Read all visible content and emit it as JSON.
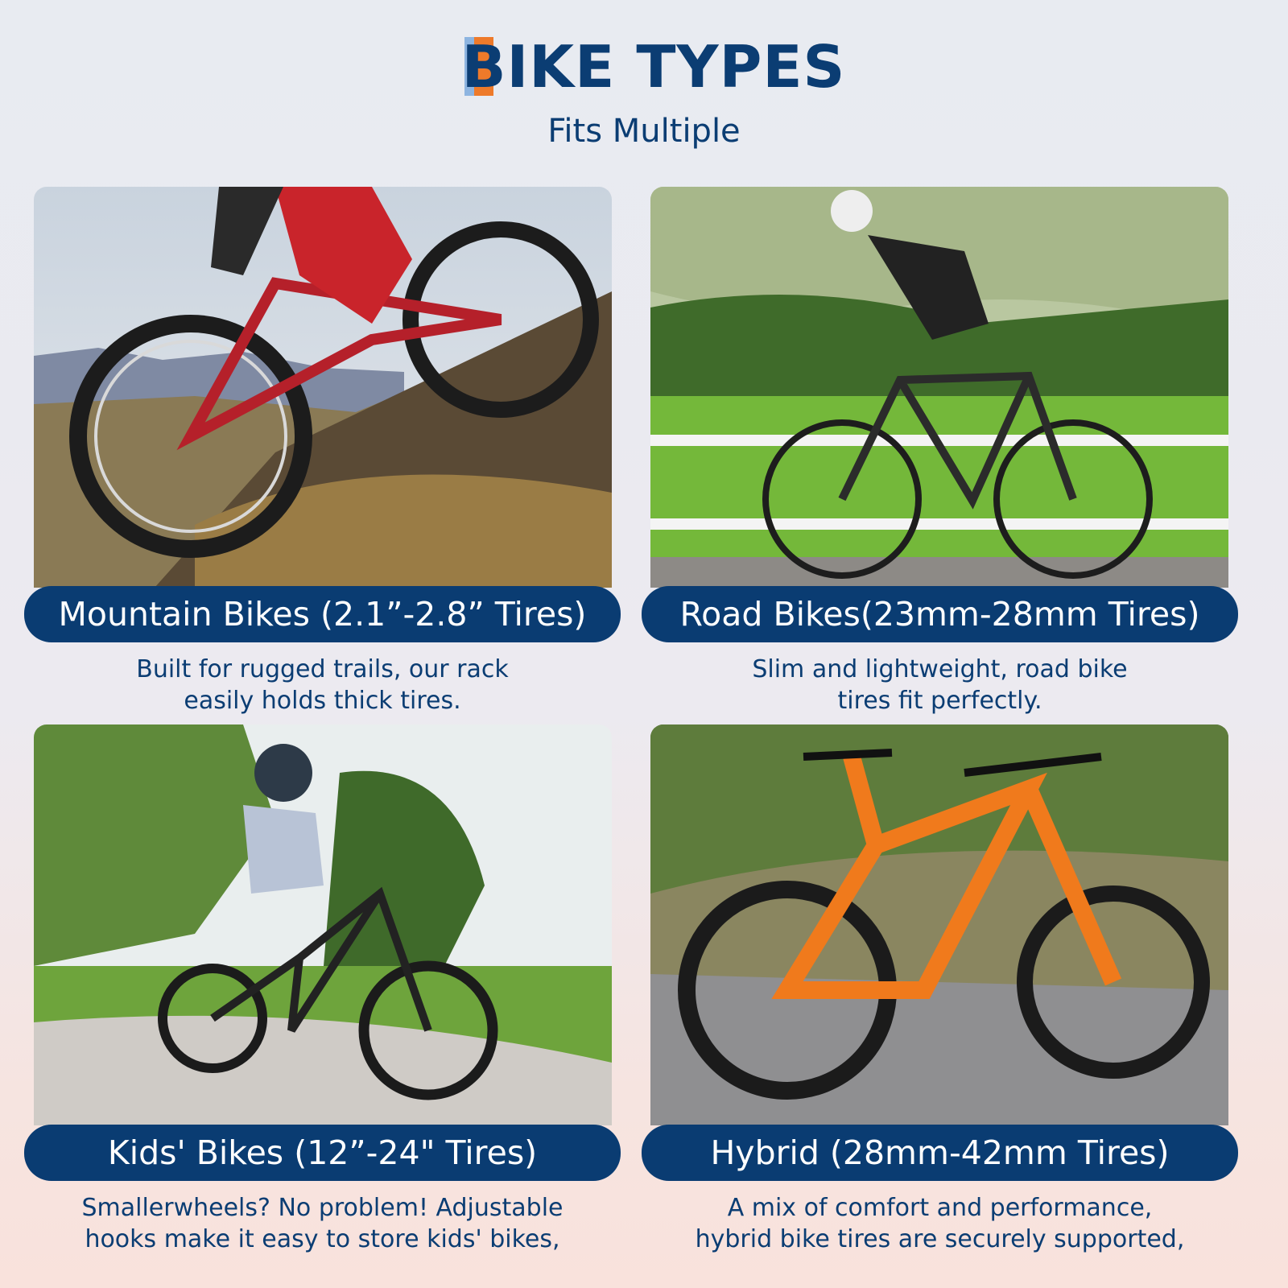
{
  "header": {
    "title": "BIKE TYPES",
    "subtitle": "Fits Multiple",
    "accent_colors": [
      "#8db4e0",
      "#ee7a2a"
    ],
    "brand_color": "#0a3c72"
  },
  "cards": [
    {
      "label": "Mountain Bikes (2.1”-2.8” Tires)",
      "caption_lines": [
        "Built for rugged trails, our rack",
        "easily holds thick tires."
      ],
      "photo": "mountain-bike-rider-on-hillside"
    },
    {
      "label": "Road Bikes(23mm-28mm Tires)",
      "caption_lines": [
        "Slim and lightweight, road bike",
        "tires fit perfectly."
      ],
      "photo": "woman-riding-road-bike"
    },
    {
      "label": "Kids' Bikes (12”-24\" Tires)",
      "caption_lines": [
        "Smallerwheels? No problem! Adjustable",
        "hooks make it easy to store kids' bikes,"
      ],
      "photo": "child-riding-bike-in-park"
    },
    {
      "label": "Hybrid (28mm-42mm Tires)",
      "caption_lines": [
        "A mix of comfort and performance,",
        "hybrid bike tires are securely supported,"
      ],
      "photo": "orange-hybrid-bike-on-road"
    }
  ]
}
